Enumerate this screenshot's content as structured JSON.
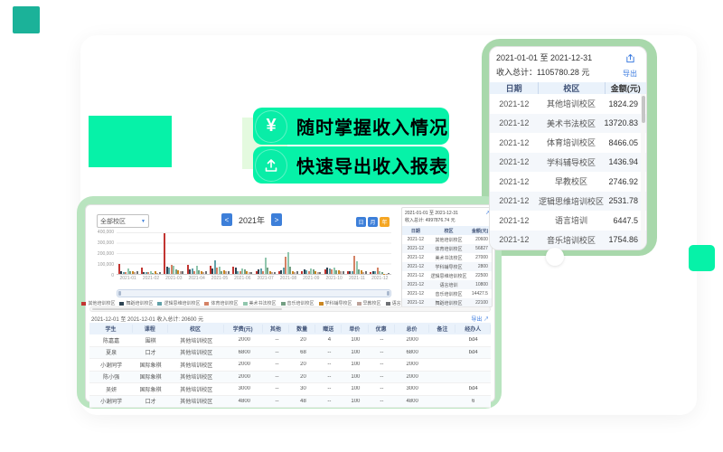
{
  "colors": {
    "spring_green": "#06f2a8",
    "pale_green": "#e4fadf",
    "mint_frame": "#a8d8ab",
    "mint_frame_light": "#b9e4bf",
    "teal_accent": "#1bb299",
    "button_blue": "#3d7fd9",
    "button_orange": "#f5a623",
    "link_blue": "#3e7de0",
    "table_header_bg": "#eaf2fb",
    "table_header_text": "#44567a"
  },
  "hero": {
    "pills": [
      {
        "icon": "yen-icon",
        "glyph": "¥",
        "label": "随时掌握收入情况"
      },
      {
        "icon": "upload-icon",
        "label": "快速导出收入报表"
      }
    ]
  },
  "income_panel": {
    "date_range": "2021-01-01 至 2021-12-31",
    "total_line": "收入总计：1105780.28 元",
    "export_label": "导出",
    "columns": [
      "日期",
      "校区",
      "金额(元)"
    ],
    "rows": [
      [
        "2021-12",
        "其他培训校区",
        "1824.29"
      ],
      [
        "2021-12",
        "美术书法校区",
        "13720.83"
      ],
      [
        "2021-12",
        "体育培训校区",
        "8466.05"
      ],
      [
        "2021-12",
        "学科辅导校区",
        "1436.94"
      ],
      [
        "2021-12",
        "早教校区",
        "2746.92"
      ],
      [
        "2021-12",
        "逻辑思维培训校区",
        "2531.78"
      ],
      [
        "2021-12",
        "语言培训",
        "6447.5"
      ],
      [
        "2021-12",
        "音乐培训校区",
        "1754.86"
      ]
    ]
  },
  "chart_data": {
    "type": "bar",
    "title": "",
    "categories": [
      "2021-01",
      "2021-02",
      "2021-03",
      "2021-04",
      "2021-05",
      "2021-06",
      "2021-07",
      "2021-08",
      "2021-09",
      "2021-10",
      "2021-11",
      "2021-12"
    ],
    "series": [
      {
        "name": "其他培训校区",
        "color": "#c23531",
        "values": [
          98000,
          62000,
          395000,
          90000,
          78000,
          70000,
          30000,
          28000,
          30000,
          45000,
          30000,
          20600
        ]
      },
      {
        "name": "舞蹈培训校区",
        "color": "#2f4554",
        "values": [
          30000,
          15000,
          68000,
          40000,
          52000,
          60000,
          45000,
          35000,
          40000,
          65000,
          30000,
          22100
        ]
      },
      {
        "name": "逻辑思维培训校区",
        "color": "#61a0a8",
        "values": [
          20000,
          18000,
          60000,
          55000,
          130000,
          28000,
          48000,
          60000,
          35000,
          55000,
          25000,
          22500
        ]
      },
      {
        "name": "体育培训校区",
        "color": "#d48265",
        "values": [
          15000,
          20000,
          90000,
          30000,
          60000,
          22000,
          30000,
          165000,
          25000,
          40000,
          170000,
          56827
        ]
      },
      {
        "name": "美术书法校区",
        "color": "#91c7ae",
        "values": [
          55000,
          30000,
          75000,
          80000,
          70000,
          50000,
          160000,
          210000,
          55000,
          60000,
          120000,
          27000
        ]
      },
      {
        "name": "音乐培训校区",
        "color": "#749f83",
        "values": [
          25000,
          12000,
          40000,
          35000,
          30000,
          45000,
          60000,
          70000,
          45000,
          35000,
          40000,
          14427
        ]
      },
      {
        "name": "学科辅导校区",
        "color": "#ca8622",
        "values": [
          30000,
          25000,
          35000,
          28000,
          38000,
          30000,
          25000,
          30000,
          28000,
          32000,
          35000,
          2800
        ]
      },
      {
        "name": "早教校区",
        "color": "#bda29a",
        "values": [
          18000,
          10000,
          25000,
          20000,
          22000,
          18000,
          15000,
          20000,
          18000,
          22000,
          20000,
          2746
        ]
      },
      {
        "name": "语言培训",
        "color": "#6e7074",
        "values": [
          22000,
          15000,
          30000,
          25000,
          28000,
          20000,
          18000,
          25000,
          20000,
          28000,
          25000,
          10800
        ]
      }
    ],
    "ylim": [
      0,
      400000
    ],
    "yticks": [
      "400,000",
      "300,000",
      "200,000",
      "100,000",
      "0"
    ],
    "xlabel": "",
    "ylabel": "",
    "grid": true,
    "legend_position": "bottom"
  },
  "dashboard": {
    "filter_value": "全部校区",
    "filter_caret": "▼",
    "year_nav": {
      "prev": "<",
      "label": "2021年",
      "next": ">"
    },
    "view_toggle": [
      {
        "label": "日",
        "active": false
      },
      {
        "label": "月",
        "active": false
      },
      {
        "label": "年",
        "active": true
      }
    ],
    "mini_panel": {
      "date_range": "2021-01-01 至 2021-12-31",
      "total_line": "收入总计: 4997876.74 元",
      "export_icon_glyph": "↗",
      "columns": [
        "日期",
        "校区",
        "金额(元)"
      ],
      "rows": [
        [
          "2021-12",
          "其他培训校区",
          "20600"
        ],
        [
          "2021-12",
          "体育培训校区",
          "56827"
        ],
        [
          "2021-12",
          "美术书法校区",
          "27000"
        ],
        [
          "2021-12",
          "学科辅导校区",
          "2800"
        ],
        [
          "2021-12",
          "逻辑思维培训校区",
          "22500"
        ],
        [
          "2021-12",
          "语言培训",
          "10800"
        ],
        [
          "2021-12",
          "音乐培训校区",
          "14427.5"
        ],
        [
          "2021-12",
          "舞蹈培训校区",
          "22100"
        ]
      ]
    },
    "summary": {
      "text": "2021-12-01 至 2021-12-01 收入总计: 20600 元",
      "export_label": "导出 ↗"
    },
    "detail_table": {
      "columns": [
        "学生",
        "课程",
        "校区",
        "学费(元)",
        "其他",
        "数量",
        "赠送",
        "单价",
        "优惠",
        "总价",
        "备注",
        "经办人"
      ],
      "rows": [
        [
          "陈嘉嘉",
          "围棋",
          "其他培训校区",
          "2000",
          "--",
          "20",
          "4",
          "100",
          "--",
          "2000",
          "",
          "bd4"
        ],
        [
          "夏泉",
          "口才",
          "其他培训校区",
          "6800",
          "--",
          "68",
          "--",
          "100",
          "--",
          "6800",
          "",
          "bd4"
        ],
        [
          "小谢同学",
          "国际象棋",
          "其他培训校区",
          "2000",
          "--",
          "20",
          "--",
          "100",
          "--",
          "2000",
          "",
          ""
        ],
        [
          "陈小强",
          "国际象棋",
          "其他培训校区",
          "2000",
          "--",
          "20",
          "--",
          "100",
          "--",
          "2000",
          "",
          ""
        ],
        [
          "吴妍",
          "国际象棋",
          "其他培训校区",
          "3000",
          "--",
          "30",
          "--",
          "100",
          "--",
          "3000",
          "",
          "bd4"
        ],
        [
          "小谢同学",
          "口才",
          "其他培训校区",
          "4800",
          "--",
          "48",
          "--",
          "100",
          "--",
          "4800",
          "",
          "6"
        ]
      ]
    }
  }
}
